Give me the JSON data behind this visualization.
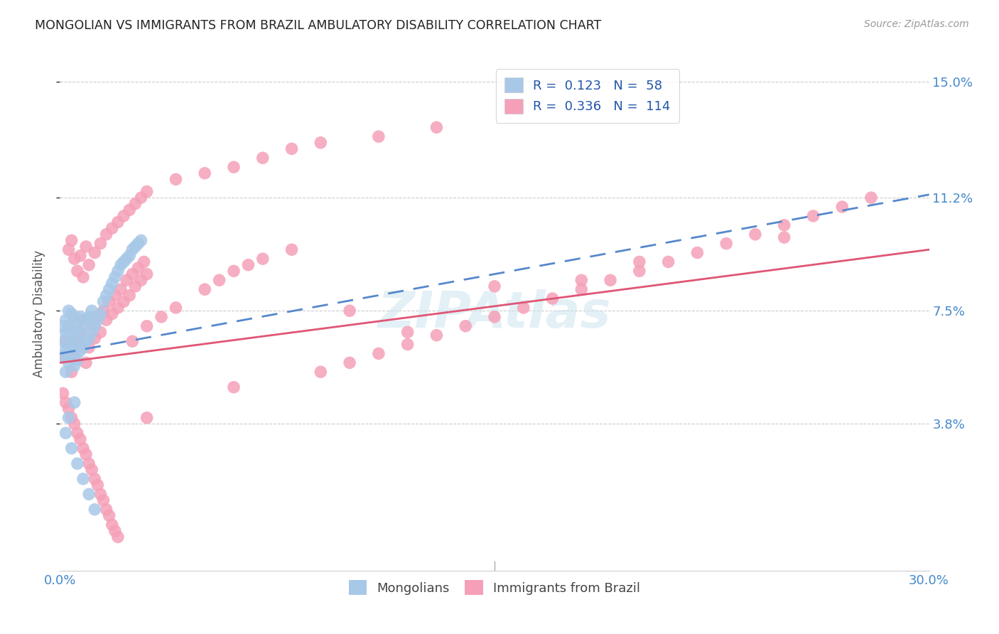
{
  "title": "MONGOLIAN VS IMMIGRANTS FROM BRAZIL AMBULATORY DISABILITY CORRELATION CHART",
  "source": "Source: ZipAtlas.com",
  "ylabel": "Ambulatory Disability",
  "xmin": 0.0,
  "xmax": 0.3,
  "ymin": -0.01,
  "ymax": 0.158,
  "yticks": [
    0.038,
    0.075,
    0.112,
    0.15
  ],
  "ytick_labels": [
    "3.8%",
    "7.5%",
    "11.2%",
    "15.0%"
  ],
  "watermark": "ZIPAtlas",
  "legend_R1": "R =  0.123   N =  58",
  "legend_R2": "R =  0.336   N =  114",
  "color_mongolian": "#a8c8e8",
  "color_brazil": "#f5a0b8",
  "color_line_mongolian": "#5588cc",
  "color_line_brazil": "#e05575",
  "background_color": "#ffffff",
  "mongolian_x": [
    0.001,
    0.001,
    0.001,
    0.002,
    0.002,
    0.002,
    0.002,
    0.003,
    0.003,
    0.003,
    0.003,
    0.004,
    0.004,
    0.004,
    0.004,
    0.005,
    0.005,
    0.005,
    0.005,
    0.006,
    0.006,
    0.006,
    0.007,
    0.007,
    0.007,
    0.008,
    0.008,
    0.009,
    0.009,
    0.01,
    0.01,
    0.011,
    0.011,
    0.012,
    0.013,
    0.014,
    0.015,
    0.016,
    0.017,
    0.018,
    0.019,
    0.02,
    0.021,
    0.022,
    0.023,
    0.024,
    0.025,
    0.026,
    0.027,
    0.028,
    0.005,
    0.003,
    0.002,
    0.004,
    0.006,
    0.008,
    0.01,
    0.012
  ],
  "mongolian_y": [
    0.06,
    0.065,
    0.07,
    0.055,
    0.062,
    0.068,
    0.072,
    0.058,
    0.063,
    0.067,
    0.075,
    0.06,
    0.065,
    0.07,
    0.074,
    0.057,
    0.063,
    0.068,
    0.073,
    0.059,
    0.065,
    0.071,
    0.062,
    0.068,
    0.073,
    0.063,
    0.07,
    0.065,
    0.072,
    0.066,
    0.073,
    0.068,
    0.075,
    0.07,
    0.072,
    0.074,
    0.078,
    0.08,
    0.082,
    0.084,
    0.086,
    0.088,
    0.09,
    0.091,
    0.092,
    0.093,
    0.095,
    0.096,
    0.097,
    0.098,
    0.045,
    0.04,
    0.035,
    0.03,
    0.025,
    0.02,
    0.015,
    0.01
  ],
  "brazil_x": [
    0.001,
    0.002,
    0.003,
    0.004,
    0.005,
    0.006,
    0.007,
    0.008,
    0.009,
    0.01,
    0.011,
    0.012,
    0.013,
    0.014,
    0.015,
    0.016,
    0.017,
    0.018,
    0.019,
    0.02,
    0.021,
    0.022,
    0.023,
    0.024,
    0.025,
    0.026,
    0.027,
    0.028,
    0.029,
    0.03,
    0.001,
    0.002,
    0.003,
    0.004,
    0.005,
    0.006,
    0.007,
    0.008,
    0.009,
    0.01,
    0.011,
    0.012,
    0.013,
    0.014,
    0.015,
    0.016,
    0.017,
    0.018,
    0.019,
    0.02,
    0.025,
    0.03,
    0.035,
    0.04,
    0.05,
    0.055,
    0.06,
    0.065,
    0.07,
    0.08,
    0.09,
    0.1,
    0.11,
    0.12,
    0.13,
    0.14,
    0.15,
    0.16,
    0.17,
    0.18,
    0.19,
    0.2,
    0.21,
    0.22,
    0.23,
    0.24,
    0.25,
    0.26,
    0.27,
    0.28,
    0.1,
    0.15,
    0.2,
    0.25,
    0.03,
    0.06,
    0.12,
    0.18,
    0.003,
    0.004,
    0.005,
    0.006,
    0.007,
    0.008,
    0.009,
    0.01,
    0.012,
    0.014,
    0.016,
    0.018,
    0.02,
    0.022,
    0.024,
    0.026,
    0.028,
    0.03,
    0.04,
    0.05,
    0.06,
    0.07,
    0.08,
    0.09,
    0.11,
    0.13
  ],
  "brazil_y": [
    0.06,
    0.065,
    0.07,
    0.055,
    0.06,
    0.065,
    0.068,
    0.072,
    0.058,
    0.063,
    0.07,
    0.066,
    0.073,
    0.068,
    0.075,
    0.072,
    0.078,
    0.074,
    0.08,
    0.076,
    0.082,
    0.078,
    0.085,
    0.08,
    0.087,
    0.083,
    0.089,
    0.085,
    0.091,
    0.087,
    0.048,
    0.045,
    0.043,
    0.04,
    0.038,
    0.035,
    0.033,
    0.03,
    0.028,
    0.025,
    0.023,
    0.02,
    0.018,
    0.015,
    0.013,
    0.01,
    0.008,
    0.005,
    0.003,
    0.001,
    0.065,
    0.07,
    0.073,
    0.076,
    0.082,
    0.085,
    0.088,
    0.09,
    0.092,
    0.095,
    0.055,
    0.058,
    0.061,
    0.064,
    0.067,
    0.07,
    0.073,
    0.076,
    0.079,
    0.082,
    0.085,
    0.088,
    0.091,
    0.094,
    0.097,
    0.1,
    0.103,
    0.106,
    0.109,
    0.112,
    0.075,
    0.083,
    0.091,
    0.099,
    0.04,
    0.05,
    0.068,
    0.085,
    0.095,
    0.098,
    0.092,
    0.088,
    0.093,
    0.086,
    0.096,
    0.09,
    0.094,
    0.097,
    0.1,
    0.102,
    0.104,
    0.106,
    0.108,
    0.11,
    0.112,
    0.114,
    0.118,
    0.12,
    0.122,
    0.125,
    0.128,
    0.13,
    0.132,
    0.135
  ]
}
